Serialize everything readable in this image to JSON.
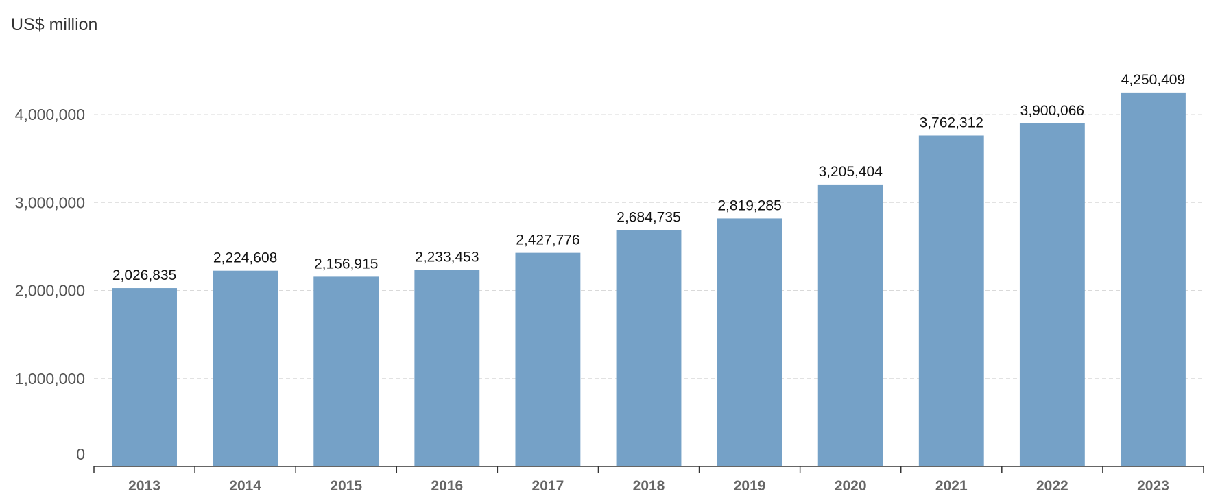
{
  "chart_data": {
    "type": "bar",
    "ylabel": "US$ million",
    "categories": [
      "2013",
      "2014",
      "2015",
      "2016",
      "2017",
      "2018",
      "2019",
      "2020",
      "2021",
      "2022",
      "2023"
    ],
    "values": [
      2026835,
      2224608,
      2156915,
      2233453,
      2427776,
      2684735,
      2819285,
      3205404,
      3762312,
      3900066,
      4250409
    ],
    "data_labels": [
      "2,026,835",
      "2,224,608",
      "2,156,915",
      "2,233,453",
      "2,427,776",
      "2,684,735",
      "2,819,285",
      "3,205,404",
      "3,762,312",
      "3,900,066",
      "4,250,409"
    ],
    "yticks": [
      0,
      1000000,
      2000000,
      3000000,
      4000000
    ],
    "ytick_labels": [
      "0",
      "1,000,000",
      "2,000,000",
      "3,000,000",
      "4,000,000"
    ],
    "ylim": [
      0,
      4600000
    ],
    "grid": true,
    "legend": "none",
    "bar_color": "#75a1c7"
  }
}
